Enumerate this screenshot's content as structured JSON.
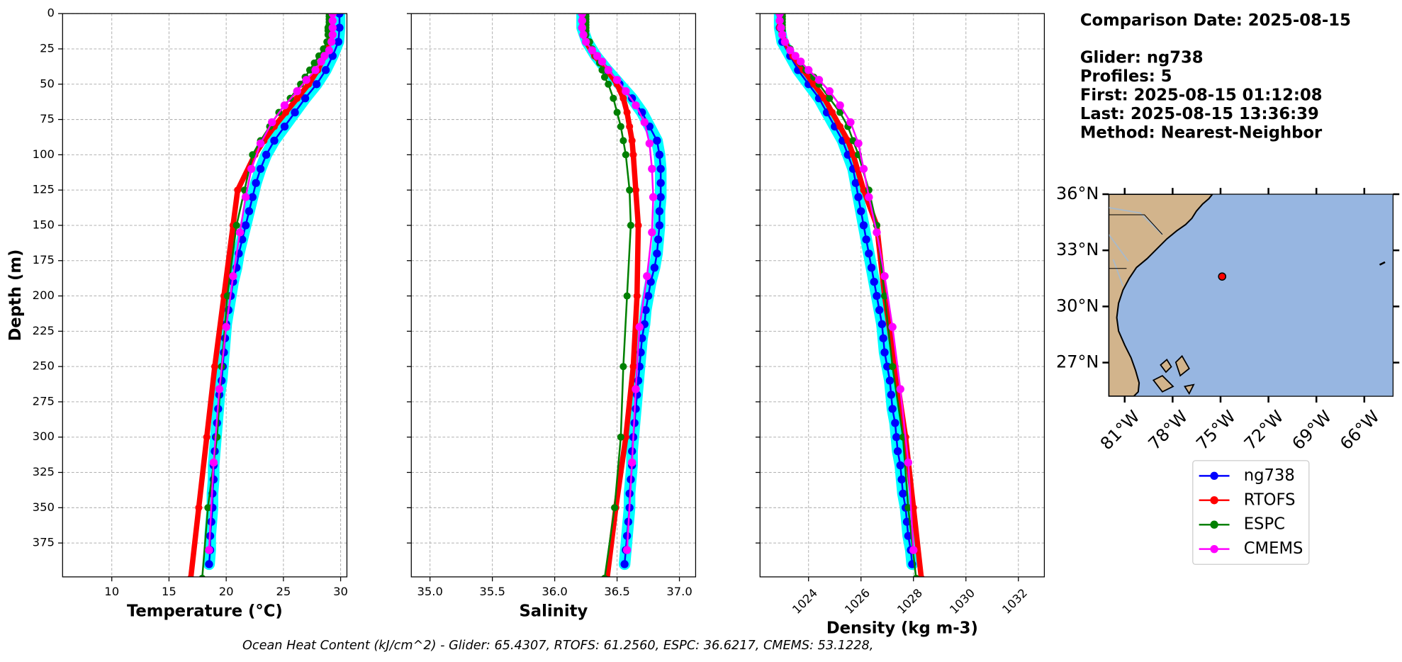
{
  "chart_data": {
    "type": "profile",
    "ylabel": "Depth (m)",
    "ylim": [
      399,
      0
    ],
    "yticks": [
      0,
      25,
      50,
      75,
      100,
      125,
      150,
      175,
      200,
      225,
      250,
      275,
      300,
      325,
      350,
      375
    ],
    "grid": true,
    "panels": [
      {
        "xlabel": "Temperature (°C)",
        "xlim": [
          5.7,
          30.55
        ],
        "xticks": [
          10,
          15,
          20,
          25,
          30
        ]
      },
      {
        "xlabel": "Salinity",
        "xlim": [
          34.85,
          37.13
        ],
        "xticks": [
          {
            "value": 35,
            "label": "35.0"
          },
          35.5,
          {
            "value": 36,
            "label": "36.0"
          },
          36.5,
          {
            "value": 37,
            "label": "37.0"
          }
        ]
      },
      {
        "xlabel": "Density (kg m-3)",
        "xlim": [
          1022.15,
          1032.99
        ],
        "xticks": [
          1024,
          1026,
          1028,
          1030,
          1032
        ]
      }
    ],
    "series": [
      {
        "name": "ng738",
        "color": "#0000ff",
        "halo_color": "#00ffff",
        "linewidth": 2,
        "marker_size": 4.5,
        "depth": [
          0,
          10,
          20,
          30,
          40,
          50,
          60,
          70,
          80,
          90,
          100,
          110,
          120,
          130,
          140,
          150,
          160,
          170,
          180,
          190,
          200,
          210,
          220,
          230,
          240,
          250,
          260,
          270,
          280,
          290,
          300,
          310,
          320,
          330,
          340,
          350,
          360,
          370,
          380,
          390
        ],
        "values": [
          [
            29.9,
            29.9,
            29.8,
            29.3,
            28.7,
            27.9,
            26.9,
            26.0,
            25.1,
            24.2,
            23.5,
            23.0,
            22.6,
            22.3,
            22.0,
            21.7,
            21.4,
            21.1,
            20.9,
            20.6,
            20.4,
            20.2,
            20.0,
            19.9,
            19.8,
            19.7,
            19.6,
            19.4,
            19.3,
            19.2,
            19.1,
            19.0,
            18.9,
            18.9,
            18.8,
            18.8,
            18.7,
            18.6,
            18.6,
            18.5
          ],
          [
            36.22,
            36.22,
            36.26,
            36.33,
            36.42,
            36.52,
            36.62,
            36.7,
            36.76,
            36.82,
            36.84,
            36.85,
            36.85,
            36.85,
            36.84,
            36.84,
            36.83,
            36.82,
            36.8,
            36.77,
            36.75,
            36.73,
            36.72,
            36.7,
            36.69,
            36.68,
            36.67,
            36.66,
            36.65,
            36.64,
            36.63,
            36.62,
            36.62,
            36.61,
            36.6,
            36.6,
            36.59,
            36.58,
            36.57,
            36.56
          ],
          [
            1022.9,
            1022.9,
            1023.0,
            1023.3,
            1023.6,
            1024.0,
            1024.4,
            1024.7,
            1025.0,
            1025.3,
            1025.5,
            1025.7,
            1025.8,
            1025.9,
            1026.0,
            1026.1,
            1026.2,
            1026.3,
            1026.4,
            1026.5,
            1026.6,
            1026.7,
            1026.8,
            1026.85,
            1026.9,
            1027.0,
            1027.1,
            1027.15,
            1027.2,
            1027.3,
            1027.35,
            1027.4,
            1027.5,
            1027.55,
            1027.6,
            1027.7,
            1027.75,
            1027.8,
            1027.9,
            1027.95
          ]
        ]
      },
      {
        "name": "RTOFS",
        "color": "#ff0000",
        "linewidth": 6,
        "marker_size": 4,
        "depth": [
          0,
          10,
          20,
          30,
          40,
          50,
          60,
          70,
          80,
          90,
          100,
          125,
          150,
          200,
          250,
          300,
          350,
          400
        ],
        "values": [
          [
            29.2,
            29.2,
            29.0,
            28.6,
            28.0,
            27.2,
            26.2,
            25.2,
            24.2,
            23.3,
            22.5,
            21.0,
            20.6,
            19.8,
            19.0,
            18.3,
            17.6,
            16.9
          ],
          [
            36.22,
            36.22,
            36.25,
            36.32,
            36.42,
            36.5,
            36.55,
            36.58,
            36.6,
            36.62,
            36.63,
            36.65,
            36.67,
            36.66,
            36.63,
            36.57,
            36.49,
            36.42
          ],
          [
            1022.9,
            1022.9,
            1023.1,
            1023.4,
            1023.8,
            1024.2,
            1024.6,
            1024.9,
            1025.2,
            1025.5,
            1025.7,
            1026.1,
            1026.6,
            1026.9,
            1027.3,
            1027.7,
            1028.0,
            1028.3
          ]
        ]
      },
      {
        "name": "ESPC",
        "color": "#008000",
        "linewidth": 2,
        "marker_size": 4,
        "depth": [
          0,
          2,
          4,
          6,
          8,
          10,
          12,
          15,
          20,
          25,
          30,
          35,
          40,
          45,
          50,
          60,
          70,
          80,
          90,
          100,
          125,
          150,
          200,
          250,
          300,
          350,
          400
        ],
        "values": [
          [
            29.0,
            29.0,
            29.0,
            29.0,
            29.0,
            28.9,
            28.9,
            28.9,
            28.8,
            28.5,
            28.1,
            27.7,
            27.3,
            26.9,
            26.5,
            25.6,
            24.6,
            23.8,
            23.0,
            22.3,
            21.6,
            20.9,
            20.1,
            19.6,
            19.2,
            18.4,
            17.9
          ],
          [
            36.25,
            36.25,
            36.25,
            36.25,
            36.25,
            36.25,
            36.25,
            36.25,
            36.28,
            36.3,
            36.33,
            36.36,
            36.38,
            36.4,
            36.43,
            36.47,
            36.5,
            36.53,
            36.55,
            36.57,
            36.6,
            36.61,
            36.58,
            36.55,
            36.53,
            36.48,
            36.4
          ],
          [
            1023.0,
            1023.0,
            1023.0,
            1023.0,
            1023.0,
            1023.0,
            1023.0,
            1023.0,
            1023.1,
            1023.3,
            1023.5,
            1023.7,
            1023.9,
            1024.2,
            1024.4,
            1024.8,
            1025.2,
            1025.5,
            1025.7,
            1025.9,
            1026.3,
            1026.6,
            1026.9,
            1027.2,
            1027.6,
            1027.8,
            1028.1
          ]
        ]
      },
      {
        "name": "CMEMS",
        "color": "#ff00ff",
        "linewidth": 2,
        "marker_size": 4.5,
        "depth": [
          0,
          5,
          10,
          15,
          20,
          26,
          30,
          34,
          40,
          47,
          55,
          65,
          77,
          92,
          110,
          130,
          155,
          186,
          222,
          266,
          318,
          380
        ],
        "values": [
          [
            29.3,
            29.3,
            29.3,
            29.3,
            29.2,
            29.0,
            28.6,
            28.3,
            27.8,
            27.0,
            26.2,
            25.1,
            24.0,
            23.0,
            22.2,
            21.7,
            21.2,
            20.6,
            20.0,
            19.4,
            18.9,
            18.5
          ],
          [
            36.22,
            36.22,
            36.22,
            36.23,
            36.25,
            36.3,
            36.34,
            36.38,
            36.43,
            36.5,
            36.57,
            36.65,
            36.72,
            36.76,
            36.78,
            36.79,
            36.78,
            36.74,
            36.68,
            36.65,
            36.62,
            36.58
          ],
          [
            1022.9,
            1022.9,
            1022.95,
            1023.0,
            1023.1,
            1023.3,
            1023.5,
            1023.7,
            1024.0,
            1024.4,
            1024.8,
            1025.2,
            1025.6,
            1025.9,
            1026.1,
            1026.3,
            1026.6,
            1026.9,
            1027.2,
            1027.5,
            1027.8,
            1028.0
          ]
        ]
      }
    ]
  },
  "info": [
    "Comparison Date: 2025-08-15",
    "Glider: ng738",
    "Profiles: 5",
    "First: 2025-08-15 01:12:08",
    "Last: 2025-08-15 13:36:39",
    "Method: Nearest-Neighbor"
  ],
  "map": {
    "lonlim": [
      -82.0,
      -64.2
    ],
    "latlim": [
      25.2,
      36.0
    ],
    "lonticks": [
      {
        "value": -81,
        "label": "81°W"
      },
      {
        "value": -78,
        "label": "78°W"
      },
      {
        "value": -75,
        "label": "75°W"
      },
      {
        "value": -72,
        "label": "72°W"
      },
      {
        "value": -69,
        "label": "69°W"
      },
      {
        "value": -66,
        "label": "66°W"
      }
    ],
    "latticks": [
      {
        "value": 36,
        "label": "36°N"
      },
      {
        "value": 33,
        "label": "33°N"
      },
      {
        "value": 30,
        "label": "30°N"
      },
      {
        "value": 27,
        "label": "27°N"
      }
    ],
    "point": {
      "lon": -74.9,
      "lat": 31.6,
      "color": "#ff0000"
    }
  },
  "footer": "Ocean Heat Content (kJ/cm^2) - Glider: 65.4307,  RTOFS: 61.2560,  ESPC: 36.6217,  CMEMS: 53.1228,"
}
